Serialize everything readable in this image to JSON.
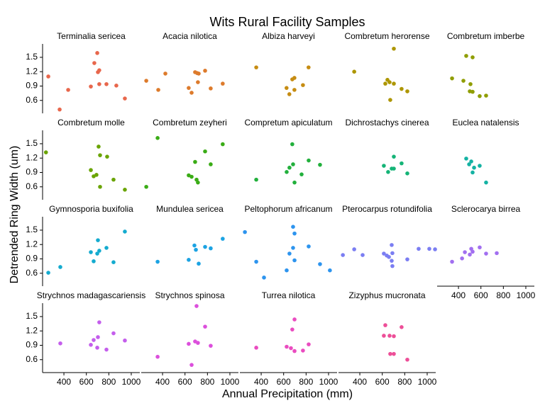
{
  "title": "Wits Rural Facility Samples",
  "x_label": "Annual Precipitation (mm)",
  "y_label": "Detrended Ring Width (um)",
  "xlim": [
    210,
    1076
  ],
  "ylim": [
    0.33,
    1.78
  ],
  "xticks": [
    400,
    600,
    800,
    1000
  ],
  "yticks": [
    0.6,
    0.9,
    1.2,
    1.5
  ],
  "chart_data": [
    {
      "type": "scatter",
      "title": "Terminalia sericea",
      "color": "#e8674c",
      "x": [
        261,
        438,
        362,
        640,
        671,
        697,
        703,
        715,
        715,
        779,
        867,
        943
      ],
      "y": [
        1.1,
        0.82,
        0.41,
        0.89,
        1.38,
        1.59,
        1.19,
        1.23,
        0.94,
        0.94,
        0.91,
        0.64
      ]
    },
    {
      "type": "scatter",
      "title": "Acacia nilotica",
      "color": "#dd7b2c",
      "x": [
        255,
        362,
        425,
        633,
        659,
        690,
        709,
        722,
        715,
        779,
        829,
        936
      ],
      "y": [
        1.01,
        0.82,
        1.16,
        0.86,
        0.76,
        1.19,
        1.17,
        1.16,
        0.98,
        1.22,
        0.85,
        0.95
      ]
    },
    {
      "type": "scatter",
      "title": "Albiza harveyi",
      "color": "#c68c12",
      "x": [
        356,
        626,
        651,
        677,
        696,
        696,
        772,
        822
      ],
      "y": [
        1.29,
        0.86,
        0.73,
        1.04,
        1.07,
        0.82,
        0.92,
        1.29
      ]
    },
    {
      "type": "scatter",
      "title": "Combretum herorense",
      "color": "#ad9600",
      "x": [
        350,
        703,
        646,
        627,
        665,
        703,
        671,
        772,
        823
      ],
      "y": [
        1.2,
        1.68,
        1.03,
        0.95,
        0.98,
        0.95,
        0.61,
        0.84,
        0.79
      ]
    },
    {
      "type": "scatter",
      "title": "Combretum imberbe",
      "color": "#8f9d00",
      "x": [
        343,
        469,
        526,
        444,
        507,
        501,
        526,
        589,
        646
      ],
      "y": [
        1.06,
        1.53,
        1.5,
        1.01,
        0.94,
        0.79,
        0.78,
        0.69,
        0.7
      ]
    },
    {
      "type": "scatter",
      "title": "Combretum molle",
      "color": "#6aa404",
      "x": [
        240,
        709,
        722,
        640,
        665,
        690,
        722,
        785,
        842,
        943
      ],
      "y": [
        1.32,
        1.44,
        1.26,
        0.95,
        0.82,
        0.85,
        0.6,
        1.23,
        0.75,
        0.54
      ]
    },
    {
      "type": "scatter",
      "title": "Combretum zeyheri",
      "color": "#3aac16",
      "x": [
        255,
        356,
        633,
        659,
        690,
        703,
        715,
        779,
        829,
        936
      ],
      "y": [
        0.6,
        1.62,
        0.84,
        0.81,
        1.12,
        0.75,
        0.69,
        1.34,
        1.07,
        1.49
      ]
    },
    {
      "type": "scatter",
      "title": "Compretum apiculatum",
      "color": "#22b03c",
      "x": [
        356,
        627,
        652,
        677,
        684,
        697,
        760,
        823,
        924
      ],
      "y": [
        0.75,
        0.91,
        1.0,
        1.49,
        1.07,
        0.69,
        0.86,
        1.15,
        1.06
      ]
    },
    {
      "type": "scatter",
      "title": "Dichrostachys cinerea",
      "color": "#15b477",
      "x": [
        614,
        652,
        684,
        703,
        703,
        772,
        823
      ],
      "y": [
        1.04,
        0.91,
        0.98,
        1.23,
        0.98,
        1.09,
        0.88
      ]
    },
    {
      "type": "scatter",
      "title": "Euclea natalensis",
      "color": "#14b2a3",
      "x": [
        469,
        495,
        514,
        526,
        539,
        589,
        646
      ],
      "y": [
        1.19,
        1.07,
        1.13,
        0.9,
        1.0,
        1.04,
        0.69
      ]
    },
    {
      "type": "scatter",
      "title": "Gymnosporia buxifolia",
      "color": "#14abcf",
      "x": [
        261,
        368,
        640,
        665,
        697,
        703,
        715,
        779,
        842,
        943
      ],
      "y": [
        0.61,
        0.73,
        1.04,
        0.85,
        1.01,
        1.29,
        1.07,
        1.13,
        0.83,
        1.47
      ]
    },
    {
      "type": "scatter",
      "title": "Mundulea sericea",
      "color": "#1ca3e3",
      "x": [
        356,
        633,
        684,
        697,
        722,
        779,
        829,
        936
      ],
      "y": [
        0.84,
        0.88,
        1.18,
        1.09,
        0.8,
        1.15,
        1.12,
        1.32
      ]
    },
    {
      "type": "scatter",
      "title": "Peltophorum africanum",
      "color": "#2d94ee",
      "x": [
        255,
        356,
        425,
        627,
        652,
        684,
        684,
        697,
        697,
        823,
        924,
        1012
      ],
      "y": [
        1.46,
        0.84,
        0.51,
        0.66,
        1.01,
        1.13,
        1.57,
        1.43,
        0.87,
        1.16,
        0.79,
        0.66
      ]
    },
    {
      "type": "scatter",
      "title": "Pterocarpus rotundifolia",
      "color": "#7b7ef2",
      "x": [
        249,
        350,
        425,
        614,
        640,
        659,
        684,
        684,
        690,
        690,
        823,
        924,
        1019,
        1070
      ],
      "y": [
        0.98,
        1.1,
        0.98,
        1.01,
        0.97,
        0.94,
        1.19,
        0.86,
        0.75,
        1.02,
        0.89,
        1.11,
        1.11,
        1.1
      ]
    },
    {
      "type": "scatter",
      "title": "Sclerocarya birrea",
      "color": "#a26ff0",
      "x": [
        343,
        432,
        457,
        501,
        514,
        526,
        589,
        646,
        741
      ],
      "y": [
        0.84,
        0.91,
        1.04,
        0.99,
        1.11,
        1.05,
        1.14,
        1.01,
        1.02
      ]
    },
    {
      "type": "scatter",
      "title": "Strychnos madagascariensis",
      "color": "#c45eec",
      "x": [
        368,
        640,
        665,
        697,
        703,
        715,
        779,
        842,
        943
      ],
      "y": [
        0.94,
        0.91,
        1.01,
        0.85,
        1.07,
        1.38,
        0.81,
        1.15,
        1.0
      ]
    },
    {
      "type": "scatter",
      "title": "Strychnos spinosa",
      "color": "#dc4fdc",
      "x": [
        356,
        633,
        659,
        690,
        703,
        715,
        779,
        829
      ],
      "y": [
        0.66,
        0.93,
        0.49,
        0.98,
        1.72,
        0.95,
        1.29,
        0.89
      ]
    },
    {
      "type": "scatter",
      "title": "Turrea nilotica",
      "color": "#ea4cc0",
      "x": [
        356,
        627,
        665,
        677,
        697,
        697,
        772,
        823
      ],
      "y": [
        0.85,
        0.87,
        0.84,
        1.23,
        1.44,
        0.78,
        0.79,
        0.92
      ]
    },
    {
      "type": "scatter",
      "title": "Zizyphus mucronata",
      "color": "#ed4f98",
      "x": [
        614,
        627,
        665,
        703,
        772,
        823,
        671,
        703
      ],
      "y": [
        1.1,
        1.32,
        1.1,
        1.09,
        1.28,
        0.6,
        0.72,
        0.72
      ]
    }
  ]
}
